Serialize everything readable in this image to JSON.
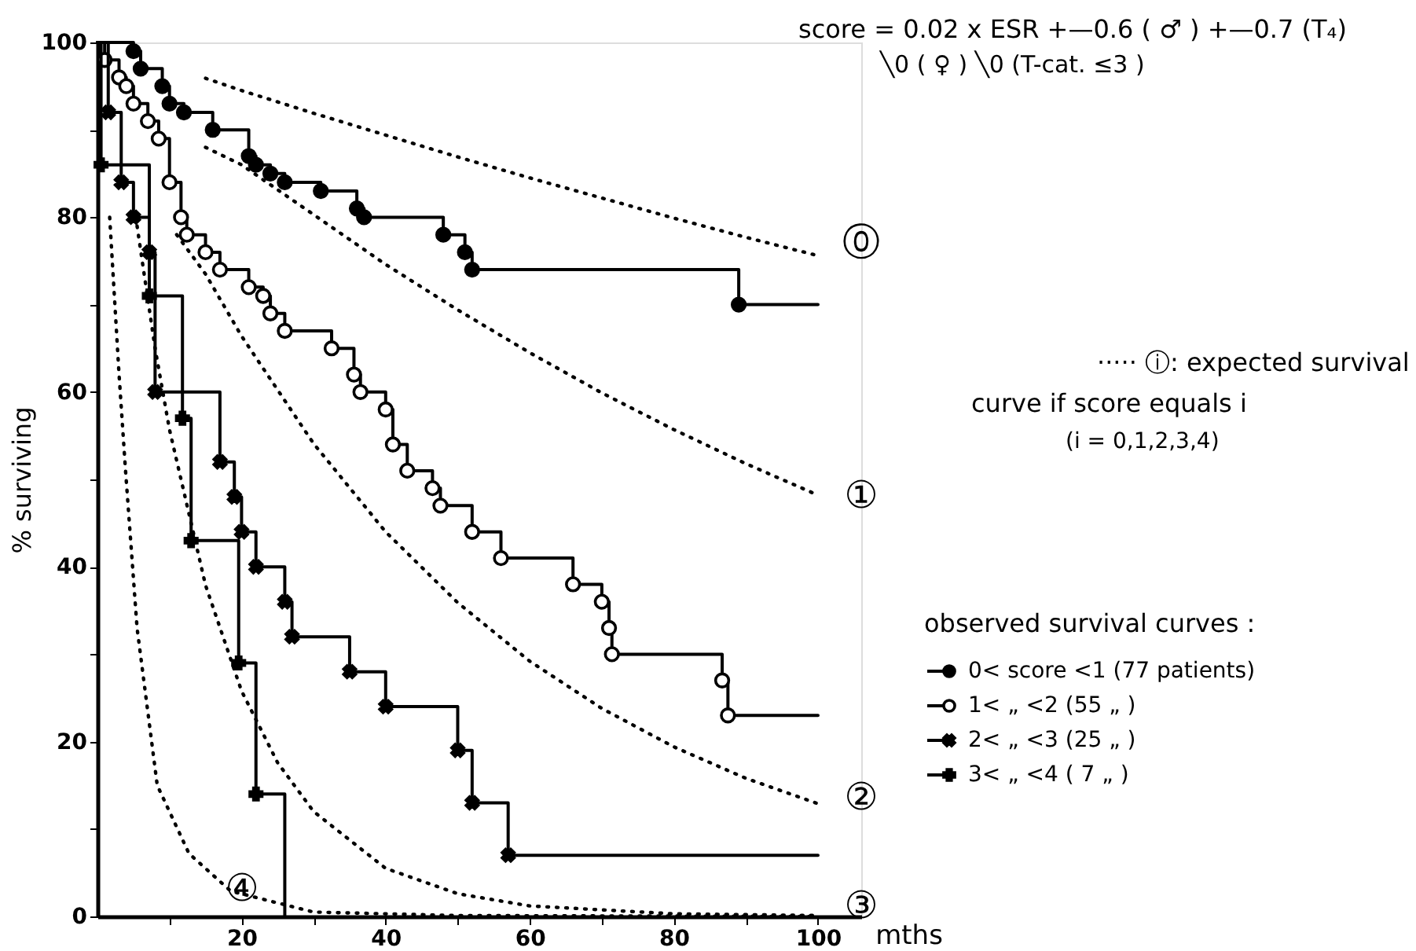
{
  "chart_data": {
    "type": "step",
    "xlabel": "mths",
    "ylabel": "% surviving",
    "legend_title": "observed survival curves :",
    "xlim": [
      0,
      106
    ],
    "ylim": [
      0,
      100
    ],
    "xticks": [
      {
        "value": 10,
        "label": null
      },
      20,
      {
        "value": 30,
        "label": null
      },
      40,
      {
        "value": 50,
        "label": null
      },
      60,
      {
        "value": 70,
        "label": null
      },
      80,
      {
        "value": 90,
        "label": null
      },
      100
    ],
    "yticks": [
      0,
      {
        "value": 10,
        "label": null
      },
      20,
      {
        "value": 30,
        "label": null
      },
      40,
      {
        "value": 50,
        "label": null
      },
      60,
      {
        "value": 70,
        "label": null
      },
      80,
      {
        "value": 90,
        "label": null
      },
      100
    ],
    "grid": false,
    "legend": "right",
    "series": [
      {
        "name": "0< score <1 (77 patients)",
        "color": "#000000",
        "marker": "circle",
        "x": [
          0,
          5,
          6,
          9,
          10,
          12,
          16,
          21,
          22,
          24,
          26,
          31,
          36,
          37,
          48,
          51,
          52,
          89,
          100
        ],
        "values": [
          100,
          99,
          97,
          95,
          93,
          92,
          90,
          87,
          86,
          85,
          84,
          83,
          81,
          80,
          78,
          76,
          74,
          70,
          70
        ]
      },
      {
        "name": "1< „ <2 (55 „ )",
        "color": "#000000",
        "marker": "circle_open",
        "x": [
          0,
          1,
          3,
          4,
          5,
          7,
          8.5,
          10,
          11.6,
          12.4,
          15,
          17,
          21,
          23,
          24,
          26,
          32.5,
          35.6,
          36.5,
          40,
          41,
          43,
          46.5,
          47.6,
          52,
          56,
          66,
          70,
          71,
          71.4,
          86.7,
          87.5,
          100
        ],
        "values": [
          100,
          98,
          96,
          95,
          93,
          91,
          89,
          84,
          80,
          78,
          76,
          74,
          72,
          71,
          69,
          67,
          65,
          62,
          60,
          58,
          54,
          51,
          49,
          47,
          44,
          41,
          38,
          36,
          33,
          30,
          27,
          23,
          23
        ]
      },
      {
        "name": "2< „ <3 (25 „ )",
        "color": "#000000",
        "marker": "x",
        "x": [
          0,
          1.5,
          3.3,
          5,
          7.2,
          8,
          17,
          19,
          20,
          22,
          26,
          27,
          35,
          40,
          50,
          52,
          57,
          100
        ],
        "values": [
          100,
          92,
          84,
          80,
          76,
          60,
          52,
          48,
          44,
          40,
          36,
          32,
          28,
          24,
          19,
          13,
          7,
          7
        ]
      },
      {
        "name": "3< „ <4 ( 7 „ )",
        "color": "#000000",
        "marker": "cross",
        "x": [
          0,
          0.5,
          7.2,
          11.8,
          13,
          19.6,
          22,
          26
        ],
        "values": [
          100,
          86,
          71,
          57,
          43,
          29,
          14,
          0
        ]
      },
      {
        "type": "line",
        "line_style": "dotted",
        "marker": "none",
        "color": "#000000",
        "x": [
          15,
          20,
          30,
          40,
          50,
          60,
          70,
          80,
          90,
          100
        ],
        "values": [
          95.9,
          94.5,
          91.9,
          89.4,
          86.9,
          84.5,
          82.2,
          79.9,
          77.7,
          75.6
        ]
      },
      {
        "type": "line",
        "line_style": "dotted",
        "marker": "none",
        "color": "#000000",
        "x": [
          15,
          20,
          30,
          40,
          50,
          60,
          70,
          80,
          90,
          100
        ],
        "values": [
          88,
          86,
          80.3,
          74.6,
          69.4,
          64.5,
          59.9,
          55.7,
          51.8,
          48.2
        ]
      },
      {
        "type": "line",
        "line_style": "dotted",
        "marker": "none",
        "color": "#000000",
        "x": [
          11,
          15,
          20,
          30,
          40,
          50,
          60,
          70,
          80,
          90,
          100
        ],
        "values": [
          78,
          73.5,
          66.4,
          54.1,
          44,
          35.9,
          29.2,
          23.8,
          19.4,
          15.8,
          12.9
        ]
      },
      {
        "type": "line",
        "line_style": "dotted",
        "marker": "none",
        "color": "#000000",
        "x": [
          5.5,
          8,
          10,
          15,
          20,
          25,
          30,
          40,
          50,
          60,
          80,
          100
        ],
        "values": [
          79,
          65,
          55.7,
          37.9,
          25.8,
          17.6,
          12,
          5.5,
          2.6,
          1.2,
          0.3,
          0.1
        ]
      },
      {
        "type": "line",
        "line_style": "dotted",
        "marker": "none",
        "color": "#000000",
        "x": [
          1.7,
          3,
          3.9,
          5.5,
          8.3,
          12.7,
          18.5,
          30,
          50,
          100
        ],
        "values": [
          80,
          62,
          51,
          33,
          15,
          7.2,
          2.9,
          0.5,
          0.1,
          0
        ]
      }
    ],
    "annotations": [
      "score = 0.02 x ESR  +—0.6 ( ♂ )  +—0.7 (T₄)",
      "╲0    ( ♀ )        ╲0   (T-cat. ≤3 )",
      "····· ⓘ: expected survival",
      "curve if score equals i",
      "(i = 0,1,2,3,4)",
      "⓪",
      "①",
      "②",
      "③",
      "④"
    ]
  }
}
